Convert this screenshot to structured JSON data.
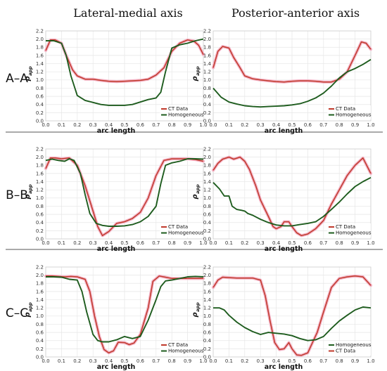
{
  "column_titles": [
    "Lateral-medial axis",
    "Posterior-anterior axis"
  ],
  "row_labels": [
    "A–A",
    "B–B",
    "C–C"
  ],
  "colors": {
    "ct": "#c0392b",
    "homog": "#1e5c1e",
    "ct_light": "#f3b3c6"
  },
  "chart_data": [
    {
      "type": "line",
      "row": 0,
      "col": 0,
      "xlabel": "arc length",
      "ylabel": "ρ",
      "ylabel_sub": "app",
      "xlim": [
        0,
        1
      ],
      "ylim": [
        0,
        2.2
      ],
      "xticks": [
        "0.0",
        "0.1",
        "0.2",
        "0.3",
        "0.4",
        "0.5",
        "0.6",
        "0.7",
        "0.8",
        "0.9",
        "1.0"
      ],
      "yticks": [
        "0.0",
        "0.2",
        "0.4",
        "0.6",
        "0.8",
        "1.0",
        "1.2",
        "1.4",
        "1.6",
        "1.8",
        "2.0",
        "2.2"
      ],
      "legend_order": [
        "CT Data",
        "Homogeneous"
      ],
      "series": [
        {
          "name": "CT Data",
          "key": "ct",
          "x": [
            0,
            0.03,
            0.06,
            0.1,
            0.13,
            0.17,
            0.2,
            0.25,
            0.3,
            0.35,
            0.4,
            0.45,
            0.5,
            0.55,
            0.6,
            0.65,
            0.7,
            0.75,
            0.8,
            0.85,
            0.9,
            0.94,
            0.97,
            1.0
          ],
          "y": [
            1.72,
            1.98,
            1.98,
            1.9,
            1.6,
            1.25,
            1.1,
            1.02,
            1.02,
            0.99,
            0.97,
            0.96,
            0.97,
            0.98,
            0.99,
            1.02,
            1.12,
            1.3,
            1.7,
            1.9,
            1.98,
            1.95,
            1.85,
            1.62
          ]
        },
        {
          "name": "Homogeneous",
          "key": "homog",
          "x": [
            0,
            0.05,
            0.1,
            0.13,
            0.16,
            0.2,
            0.25,
            0.3,
            0.35,
            0.4,
            0.45,
            0.5,
            0.55,
            0.6,
            0.65,
            0.7,
            0.73,
            0.76,
            0.8,
            0.85,
            0.9,
            0.95,
            1.0
          ],
          "y": [
            1.96,
            1.96,
            1.9,
            1.6,
            1.1,
            0.62,
            0.5,
            0.45,
            0.4,
            0.38,
            0.38,
            0.38,
            0.4,
            0.46,
            0.52,
            0.56,
            0.7,
            1.2,
            1.78,
            1.86,
            1.9,
            1.96,
            2.0
          ]
        }
      ]
    },
    {
      "type": "line",
      "row": 0,
      "col": 1,
      "xlabel": "arc length",
      "ylabel": "ρ",
      "ylabel_sub": "app",
      "xlim": [
        0,
        1
      ],
      "ylim": [
        0,
        2.2
      ],
      "xticks": [
        "0.0",
        "0.1",
        "0.2",
        "0.3",
        "0.4",
        "0.5",
        "0.6",
        "0.7",
        "0.8",
        "0.9",
        "1.0"
      ],
      "yticks": [
        "0.0",
        "0.2",
        "0.4",
        "0.6",
        "0.8",
        "1.0",
        "1.2",
        "1.4",
        "1.6",
        "1.8",
        "2.0",
        "2.2"
      ],
      "legend_order": [
        "CT Data",
        "Homogeneous"
      ],
      "series": [
        {
          "name": "CT Data",
          "key": "ct",
          "x": [
            0,
            0.03,
            0.06,
            0.1,
            0.13,
            0.17,
            0.2,
            0.25,
            0.3,
            0.35,
            0.4,
            0.45,
            0.5,
            0.55,
            0.6,
            0.65,
            0.7,
            0.75,
            0.8,
            0.85,
            0.9,
            0.94,
            0.97,
            1.0
          ],
          "y": [
            1.3,
            1.7,
            1.82,
            1.78,
            1.55,
            1.3,
            1.1,
            1.03,
            1.0,
            0.98,
            0.96,
            0.95,
            0.97,
            0.98,
            0.98,
            0.97,
            0.95,
            0.95,
            1.02,
            1.2,
            1.6,
            1.93,
            1.9,
            1.75
          ]
        },
        {
          "name": "Homogeneous",
          "key": "homog",
          "x": [
            0,
            0.05,
            0.1,
            0.15,
            0.2,
            0.25,
            0.3,
            0.35,
            0.4,
            0.45,
            0.5,
            0.55,
            0.6,
            0.65,
            0.7,
            0.75,
            0.8,
            0.85,
            0.9,
            0.95,
            1.0
          ],
          "y": [
            0.8,
            0.58,
            0.46,
            0.41,
            0.37,
            0.35,
            0.34,
            0.35,
            0.36,
            0.37,
            0.39,
            0.42,
            0.48,
            0.56,
            0.68,
            0.85,
            1.05,
            1.2,
            1.28,
            1.38,
            1.5
          ]
        }
      ]
    },
    {
      "type": "line",
      "row": 1,
      "col": 0,
      "xlabel": "arc length",
      "ylabel": "ρ",
      "ylabel_sub": "app",
      "xlim": [
        0,
        1
      ],
      "ylim": [
        0,
        2.2
      ],
      "xticks": [
        "0.0",
        "0.1",
        "0.2",
        "0.3",
        "0.4",
        "0.5",
        "0.6",
        "0.7",
        "0.8",
        "0.9",
        "1.0"
      ],
      "yticks": [
        "0.0",
        "0.2",
        "0.4",
        "0.6",
        "0.8",
        "1.0",
        "1.2",
        "1.4",
        "1.6",
        "1.8",
        "2.0",
        "2.2"
      ],
      "legend_order": [
        "CT Data",
        "Homogeneous"
      ],
      "series": [
        {
          "name": "CT Data",
          "key": "ct",
          "x": [
            0,
            0.03,
            0.06,
            0.1,
            0.15,
            0.2,
            0.25,
            0.3,
            0.33,
            0.36,
            0.4,
            0.45,
            0.5,
            0.55,
            0.6,
            0.65,
            0.7,
            0.75,
            0.8,
            0.85,
            0.9,
            0.95,
            1.0
          ],
          "y": [
            1.72,
            1.98,
            1.98,
            1.96,
            1.98,
            1.8,
            1.3,
            0.68,
            0.3,
            0.08,
            0.18,
            0.38,
            0.42,
            0.5,
            0.65,
            1.0,
            1.55,
            1.92,
            1.96,
            1.96,
            1.96,
            1.94,
            1.9
          ]
        },
        {
          "name": "Homogeneous",
          "key": "homog",
          "x": [
            0,
            0.04,
            0.08,
            0.12,
            0.15,
            0.18,
            0.22,
            0.25,
            0.28,
            0.32,
            0.36,
            0.4,
            0.45,
            0.5,
            0.55,
            0.6,
            0.65,
            0.7,
            0.73,
            0.76,
            0.8,
            0.85,
            0.9,
            0.95,
            1.0
          ],
          "y": [
            1.92,
            1.95,
            1.92,
            1.9,
            1.96,
            1.92,
            1.6,
            1.08,
            0.62,
            0.38,
            0.33,
            0.31,
            0.31,
            0.32,
            0.35,
            0.42,
            0.55,
            0.8,
            1.35,
            1.8,
            1.86,
            1.9,
            1.96,
            1.96,
            1.95
          ]
        }
      ]
    },
    {
      "type": "line",
      "row": 1,
      "col": 1,
      "xlabel": "arc length",
      "ylabel": "ρ",
      "ylabel_sub": "app",
      "xlim": [
        0,
        1
      ],
      "ylim": [
        0,
        2.2
      ],
      "xticks": [
        "0.0",
        "0.1",
        "0.2",
        "0.3",
        "0.4",
        "0.5",
        "0.6",
        "0.7",
        "0.8",
        "0.9",
        "1.0"
      ],
      "yticks": [
        "0.0",
        "0.2",
        "0.4",
        "0.6",
        "0.8",
        "1.0",
        "1.2",
        "1.4",
        "1.6",
        "1.8",
        "2.0",
        "2.2"
      ],
      "legend_order": [
        "CT Data",
        "Homogeneous"
      ],
      "series": [
        {
          "name": "CT Data",
          "key": "ct",
          "x": [
            0,
            0.03,
            0.06,
            0.1,
            0.13,
            0.17,
            0.2,
            0.23,
            0.27,
            0.3,
            0.35,
            0.38,
            0.4,
            0.43,
            0.45,
            0.48,
            0.5,
            0.53,
            0.56,
            0.6,
            0.65,
            0.7,
            0.75,
            0.8,
            0.85,
            0.9,
            0.95,
            1.0
          ],
          "y": [
            1.68,
            1.85,
            1.95,
            2.0,
            1.95,
            2.0,
            1.9,
            1.7,
            1.3,
            0.95,
            0.55,
            0.3,
            0.25,
            0.3,
            0.42,
            0.42,
            0.3,
            0.15,
            0.08,
            0.12,
            0.25,
            0.45,
            0.85,
            1.2,
            1.55,
            1.8,
            1.98,
            1.6
          ]
        },
        {
          "name": "Homogeneous",
          "key": "homog",
          "x": [
            0,
            0.04,
            0.07,
            0.1,
            0.12,
            0.15,
            0.18,
            0.2,
            0.22,
            0.25,
            0.3,
            0.35,
            0.4,
            0.45,
            0.5,
            0.55,
            0.6,
            0.65,
            0.7,
            0.75,
            0.8,
            0.85,
            0.9,
            0.95,
            1.0
          ],
          "y": [
            1.38,
            1.22,
            1.05,
            1.05,
            0.8,
            0.72,
            0.7,
            0.68,
            0.62,
            0.58,
            0.48,
            0.4,
            0.34,
            0.32,
            0.32,
            0.35,
            0.38,
            0.42,
            0.55,
            0.72,
            0.9,
            1.1,
            1.28,
            1.4,
            1.5
          ]
        }
      ]
    },
    {
      "type": "line",
      "row": 2,
      "col": 0,
      "xlabel": "arc length",
      "ylabel": "ρ",
      "ylabel_sub": "app",
      "xlim": [
        0,
        1
      ],
      "ylim": [
        0,
        2.2
      ],
      "xticks": [
        "0.0",
        "0.1",
        "0.2",
        "0.3",
        "0.4",
        "0.5",
        "0.6",
        "0.7",
        "0.8",
        "0.9",
        "1.0"
      ],
      "yticks": [
        "0.0",
        "0.2",
        "0.4",
        "0.6",
        "0.8",
        "1.0",
        "1.2",
        "1.4",
        "1.6",
        "1.8",
        "2.0",
        "2.2"
      ],
      "legend_order": [
        "CT Data",
        "Homogeneous"
      ],
      "series": [
        {
          "name": "CT Data",
          "key": "ct",
          "x": [
            0,
            0.04,
            0.08,
            0.12,
            0.16,
            0.2,
            0.25,
            0.28,
            0.31,
            0.34,
            0.37,
            0.4,
            0.43,
            0.46,
            0.5,
            0.53,
            0.56,
            0.6,
            0.65,
            0.68,
            0.72,
            0.76,
            0.8,
            0.85,
            0.9,
            0.95,
            1.0
          ],
          "y": [
            1.98,
            1.98,
            1.97,
            1.96,
            1.97,
            1.96,
            1.9,
            1.6,
            1.0,
            0.5,
            0.18,
            0.1,
            0.15,
            0.36,
            0.35,
            0.3,
            0.34,
            0.55,
            1.2,
            1.85,
            1.98,
            1.95,
            1.92,
            1.92,
            1.92,
            1.92,
            1.92
          ]
        },
        {
          "name": "Homogeneous",
          "key": "homog",
          "x": [
            0,
            0.05,
            0.1,
            0.15,
            0.2,
            0.23,
            0.26,
            0.3,
            0.33,
            0.36,
            0.4,
            0.45,
            0.5,
            0.55,
            0.6,
            0.65,
            0.7,
            0.73,
            0.76,
            0.8,
            0.85,
            0.9,
            0.95,
            1.0
          ],
          "y": [
            1.96,
            1.96,
            1.95,
            1.9,
            1.88,
            1.6,
            1.1,
            0.55,
            0.4,
            0.37,
            0.37,
            0.42,
            0.5,
            0.45,
            0.5,
            0.9,
            1.4,
            1.72,
            1.86,
            1.88,
            1.92,
            1.96,
            1.97,
            1.96
          ]
        }
      ]
    },
    {
      "type": "line",
      "row": 2,
      "col": 1,
      "xlabel": "arc length",
      "ylabel": "ρ",
      "ylabel_sub": "app",
      "xlim": [
        0,
        1
      ],
      "ylim": [
        0,
        2.2
      ],
      "xticks": [
        "0.0",
        "0.1",
        "0.2",
        "0.3",
        "0.4",
        "0.5",
        "0.6",
        "0.7",
        "0.8",
        "0.9",
        "1.0"
      ],
      "yticks": [
        "0.0",
        "0.2",
        "0.4",
        "0.6",
        "0.8",
        "1.0",
        "1.2",
        "1.4",
        "1.6",
        "1.8",
        "2.0",
        "2.2"
      ],
      "legend_order": [
        "Homogeneous",
        "CT Data"
      ],
      "series": [
        {
          "name": "CT Data",
          "key": "ct",
          "x": [
            0,
            0.03,
            0.06,
            0.1,
            0.15,
            0.2,
            0.25,
            0.3,
            0.33,
            0.36,
            0.39,
            0.42,
            0.45,
            0.48,
            0.5,
            0.53,
            0.56,
            0.6,
            0.63,
            0.66,
            0.7,
            0.75,
            0.8,
            0.85,
            0.9,
            0.95,
            1.0
          ],
          "y": [
            1.7,
            1.88,
            1.95,
            1.94,
            1.93,
            1.93,
            1.93,
            1.88,
            1.5,
            0.9,
            0.35,
            0.18,
            0.2,
            0.35,
            0.2,
            0.05,
            0.04,
            0.1,
            0.35,
            0.6,
            1.1,
            1.7,
            1.92,
            1.96,
            1.98,
            1.96,
            1.75
          ]
        },
        {
          "name": "Homogeneous",
          "key": "homog",
          "x": [
            0,
            0.04,
            0.07,
            0.1,
            0.15,
            0.2,
            0.25,
            0.3,
            0.35,
            0.4,
            0.45,
            0.5,
            0.55,
            0.6,
            0.65,
            0.7,
            0.75,
            0.8,
            0.85,
            0.9,
            0.95,
            1.0
          ],
          "y": [
            1.2,
            1.2,
            1.15,
            1.02,
            0.85,
            0.72,
            0.62,
            0.55,
            0.6,
            0.58,
            0.56,
            0.52,
            0.45,
            0.4,
            0.42,
            0.5,
            0.7,
            0.88,
            1.02,
            1.15,
            1.22,
            1.2
          ]
        }
      ]
    }
  ]
}
